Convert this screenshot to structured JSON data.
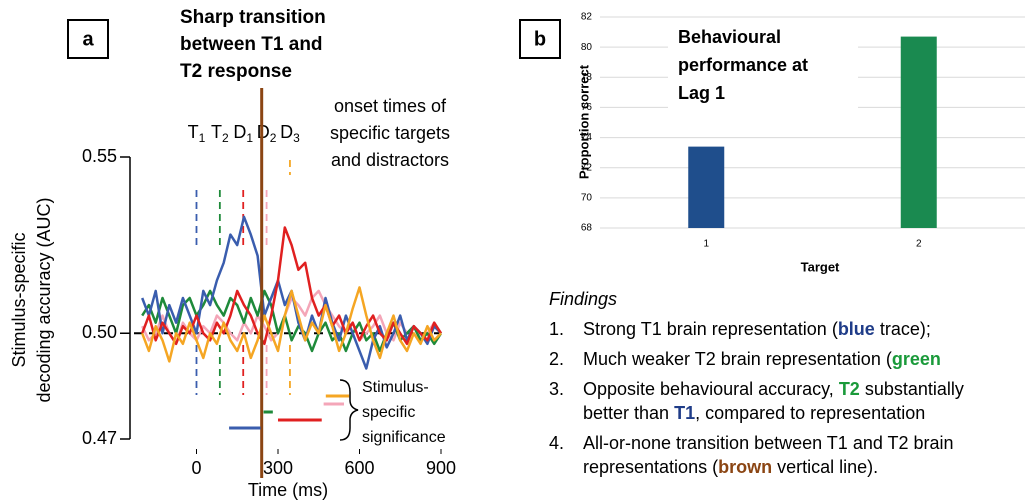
{
  "chart_data": [
    {
      "type": "line",
      "label": "a",
      "title": [
        "Sharp transition",
        "between T1 and",
        "T2 response"
      ],
      "annotation": [
        "onset times of",
        "specific targets",
        "and distractors"
      ],
      "significance_label": [
        "Stimulus-",
        "specific",
        "significance"
      ],
      "xlabel": "Time (ms)",
      "ylabel": [
        "Stimulus-specific",
        "decoding accuracy (AUC)"
      ],
      "xlim": [
        -230,
        900
      ],
      "xticks": [
        0,
        300,
        600,
        900
      ],
      "ylim": [
        0.47,
        0.55
      ],
      "yticks": [
        0.55,
        {
          "value": 0.5,
          "label": "0.50"
        },
        0.47
      ],
      "chance": 0.5,
      "transition": 240,
      "transition_color": "#8b4513",
      "onsets": [
        {
          "letter": "T",
          "sub": "1",
          "x": 0,
          "color": "#3a5dae"
        },
        {
          "letter": "T",
          "sub": "2",
          "x": 86,
          "color": "#1e8a3a"
        },
        {
          "letter": "D",
          "sub": "1",
          "x": 172,
          "color": "#e02020"
        },
        {
          "letter": "D",
          "sub": "2",
          "x": 258,
          "color": "#f4a6b8"
        },
        {
          "letter": "D",
          "sub": "3",
          "x": 344,
          "color": "#f5a623"
        }
      ],
      "significance": [
        {
          "color": "#3a5dae",
          "range": [
            120,
            236
          ]
        },
        {
          "color": "#e02020",
          "range": [
            300,
            461
          ]
        },
        {
          "color": "#1e8a3a",
          "range": [
            247,
            281
          ]
        },
        {
          "color": "#f4a6b8",
          "range": [
            468,
            543
          ]
        },
        {
          "color": "#f5a623",
          "range": [
            476,
            562
          ]
        }
      ],
      "x": [
        -200,
        -175,
        -150,
        -125,
        -100,
        -75,
        -50,
        -25,
        0,
        25,
        50,
        75,
        100,
        125,
        150,
        175,
        200,
        225,
        250,
        275,
        300,
        325,
        350,
        375,
        400,
        425,
        450,
        475,
        500,
        525,
        550,
        575,
        600,
        625,
        650,
        675,
        700,
        725,
        750,
        775,
        800,
        825,
        850,
        875,
        900
      ],
      "series": [
        {
          "color": "#f4a6b8",
          "values": [
            0.502,
            0.498,
            0.5,
            0.505,
            0.5,
            0.497,
            0.503,
            0.5,
            0.498,
            0.502,
            0.5,
            0.505,
            0.503,
            0.5,
            0.498,
            0.503,
            0.5,
            0.505,
            0.502,
            0.498,
            0.5,
            0.505,
            0.51,
            0.508,
            0.505,
            0.51,
            0.512,
            0.508,
            0.505,
            0.502,
            0.5,
            0.503,
            0.498,
            0.5,
            0.502,
            0.505,
            0.5,
            0.498,
            0.503,
            0.5,
            0.502,
            0.498,
            0.5,
            0.503,
            0.5
          ]
        },
        {
          "color": "#1e8a3a",
          "values": [
            0.505,
            0.508,
            0.503,
            0.51,
            0.505,
            0.5,
            0.508,
            0.51,
            0.505,
            0.508,
            0.512,
            0.508,
            0.505,
            0.51,
            0.508,
            0.503,
            0.51,
            0.505,
            0.512,
            0.508,
            0.5,
            0.505,
            0.498,
            0.502,
            0.5,
            0.495,
            0.5,
            0.503,
            0.498,
            0.5,
            0.495,
            0.5,
            0.503,
            0.498,
            0.5,
            0.495,
            0.5,
            0.503,
            0.498,
            0.5,
            0.502,
            0.498,
            0.5,
            0.497,
            0.5
          ]
        },
        {
          "color": "#3a5dae",
          "values": [
            0.51,
            0.505,
            0.512,
            0.5,
            0.508,
            0.503,
            0.51,
            0.505,
            0.5,
            0.512,
            0.508,
            0.515,
            0.52,
            0.528,
            0.525,
            0.533,
            0.528,
            0.522,
            0.505,
            0.51,
            0.515,
            0.508,
            0.512,
            0.503,
            0.498,
            0.505,
            0.5,
            0.51,
            0.503,
            0.498,
            0.505,
            0.5,
            0.495,
            0.49,
            0.498,
            0.502,
            0.496,
            0.5,
            0.505,
            0.498,
            0.502,
            0.5,
            0.497,
            0.502,
            0.5
          ]
        },
        {
          "color": "#e02020",
          "values": [
            0.5,
            0.505,
            0.498,
            0.503,
            0.5,
            0.497,
            0.502,
            0.5,
            0.505,
            0.5,
            0.498,
            0.503,
            0.5,
            0.505,
            0.512,
            0.508,
            0.505,
            0.5,
            0.497,
            0.505,
            0.515,
            0.53,
            0.525,
            0.518,
            0.52,
            0.51,
            0.505,
            0.508,
            0.502,
            0.505,
            0.5,
            0.503,
            0.498,
            0.502,
            0.505,
            0.5,
            0.498,
            0.503,
            0.5,
            0.497,
            0.502,
            0.5,
            0.498,
            0.503,
            0.5
          ]
        },
        {
          "color": "#f5a623",
          "values": [
            0.5,
            0.495,
            0.502,
            0.498,
            0.492,
            0.5,
            0.497,
            0.503,
            0.498,
            0.493,
            0.5,
            0.497,
            0.503,
            0.498,
            0.495,
            0.5,
            0.493,
            0.498,
            0.505,
            0.5,
            0.495,
            0.505,
            0.512,
            0.505,
            0.498,
            0.503,
            0.5,
            0.508,
            0.502,
            0.495,
            0.5,
            0.507,
            0.513,
            0.505,
            0.498,
            0.493,
            0.5,
            0.505,
            0.498,
            0.495,
            0.5,
            0.497,
            0.502,
            0.498,
            0.5
          ]
        }
      ]
    },
    {
      "type": "bar",
      "label": "b",
      "title": [
        "Behavioural",
        "performance at",
        "Lag 1"
      ],
      "xlabel": "Target",
      "ylabel": "Proportion correct",
      "categories": [
        "1",
        "2"
      ],
      "values": [
        73.4,
        80.7
      ],
      "colors": [
        "#1f4e8c",
        "#1a8a50"
      ],
      "ylim": [
        68,
        82
      ],
      "yticks": [
        68,
        70,
        72,
        74,
        76,
        78,
        80,
        82
      ],
      "grid": true
    }
  ],
  "findings": {
    "heading": "Findings",
    "items": [
      {
        "number": "1.",
        "lines": [
          [
            {
              "text": "Strong T1 brain representation ("
            },
            {
              "text": "blue",
              "color": "#1f3c88",
              "bold": true
            },
            {
              "text": " trace);"
            }
          ]
        ]
      },
      {
        "number": "2.",
        "lines": [
          [
            {
              "text": "Much weaker T2 brain representation ("
            },
            {
              "text": "green",
              "color": "#1a9a3a",
              "bold": true
            }
          ]
        ]
      },
      {
        "number": "3.",
        "lines": [
          [
            {
              "text": "Opposite behavioural accuracy, "
            },
            {
              "text": "T2",
              "color": "#1a9a3a",
              "bold": true
            },
            {
              "text": " substantially"
            }
          ],
          [
            {
              "text": "better than "
            },
            {
              "text": "T1",
              "color": "#1f3c88",
              "bold": true
            },
            {
              "text": ", compared to representation"
            }
          ]
        ]
      },
      {
        "number": "4.",
        "lines": [
          [
            {
              "text": "All-or-none transition between T1 and T2 brain"
            }
          ],
          [
            {
              "text": "representations ("
            },
            {
              "text": "brown",
              "color": "#8b4513",
              "bold": true
            },
            {
              "text": " vertical line)."
            }
          ]
        ]
      }
    ]
  }
}
